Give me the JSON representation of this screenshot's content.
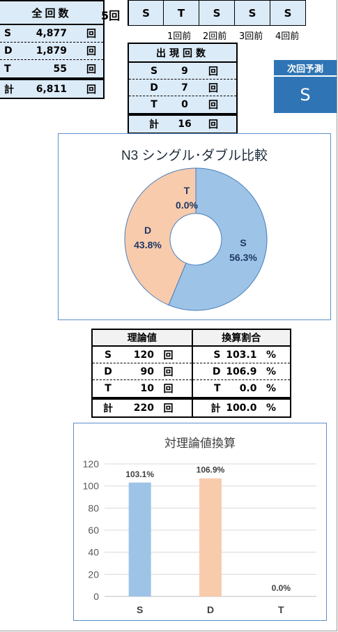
{
  "totals": {
    "header": "全回数",
    "rows": [
      {
        "key": "S",
        "value": "4,877",
        "unit": "回"
      },
      {
        "key": "D",
        "value": "1,879",
        "unit": "回"
      },
      {
        "key": "T",
        "value": "55",
        "unit": "回"
      }
    ],
    "total": {
      "key": "計",
      "value": "6,811",
      "unit": "回"
    }
  },
  "history": {
    "label": "5回",
    "cells": [
      "S",
      "T",
      "S",
      "S",
      "S"
    ],
    "sublabels": [
      "1回前",
      "2回前",
      "3回前",
      "4回前"
    ]
  },
  "occurrence": {
    "header": "出現回数",
    "rows": [
      {
        "key": "S",
        "value": "9",
        "unit": "回"
      },
      {
        "key": "D",
        "value": "7",
        "unit": "回"
      },
      {
        "key": "T",
        "value": "0",
        "unit": "回"
      }
    ],
    "total": {
      "key": "計",
      "value": "16",
      "unit": "回"
    }
  },
  "prediction": {
    "header": "次回予測",
    "value": "S"
  },
  "theory": {
    "left_header": "理論値",
    "right_header": "換算割合",
    "left_rows": [
      {
        "key": "S",
        "value": "120",
        "unit": "回"
      },
      {
        "key": "D",
        "value": "90",
        "unit": "回"
      },
      {
        "key": "T",
        "value": "10",
        "unit": "回"
      }
    ],
    "left_total": {
      "key": "計",
      "value": "220",
      "unit": "回"
    },
    "right_rows": [
      {
        "key": "S",
        "value": "103.1",
        "unit": "%"
      },
      {
        "key": "D",
        "value": "106.9",
        "unit": "%"
      },
      {
        "key": "T",
        "value": "0.0",
        "unit": "%"
      }
    ],
    "right_total": {
      "key": "計",
      "value": "100.0",
      "unit": "%"
    }
  },
  "colors": {
    "S": "#9dc3e6",
    "D": "#f8cbad",
    "T": "#a9d18e",
    "header_fill": "#dcebf8",
    "accent": "#2f75b5",
    "label_text": "#1f3864"
  },
  "chart_data": [
    {
      "type": "pie",
      "donut": true,
      "title": "N3 シングル･ダブル比較",
      "categories": [
        "S",
        "D",
        "T"
      ],
      "values": [
        56.3,
        43.8,
        0.0
      ],
      "labels": [
        "56.3%",
        "43.8%",
        "0.0%"
      ]
    },
    {
      "type": "bar",
      "title": "対理論値換算",
      "categories": [
        "S",
        "D",
        "T"
      ],
      "values": [
        103.1,
        106.9,
        0.0
      ],
      "labels": [
        "103.1%",
        "106.9%",
        "0.0%"
      ],
      "ylim": [
        0,
        120
      ],
      "yticks": [
        0,
        20,
        40,
        60,
        80,
        100,
        120
      ],
      "grid": true
    }
  ]
}
